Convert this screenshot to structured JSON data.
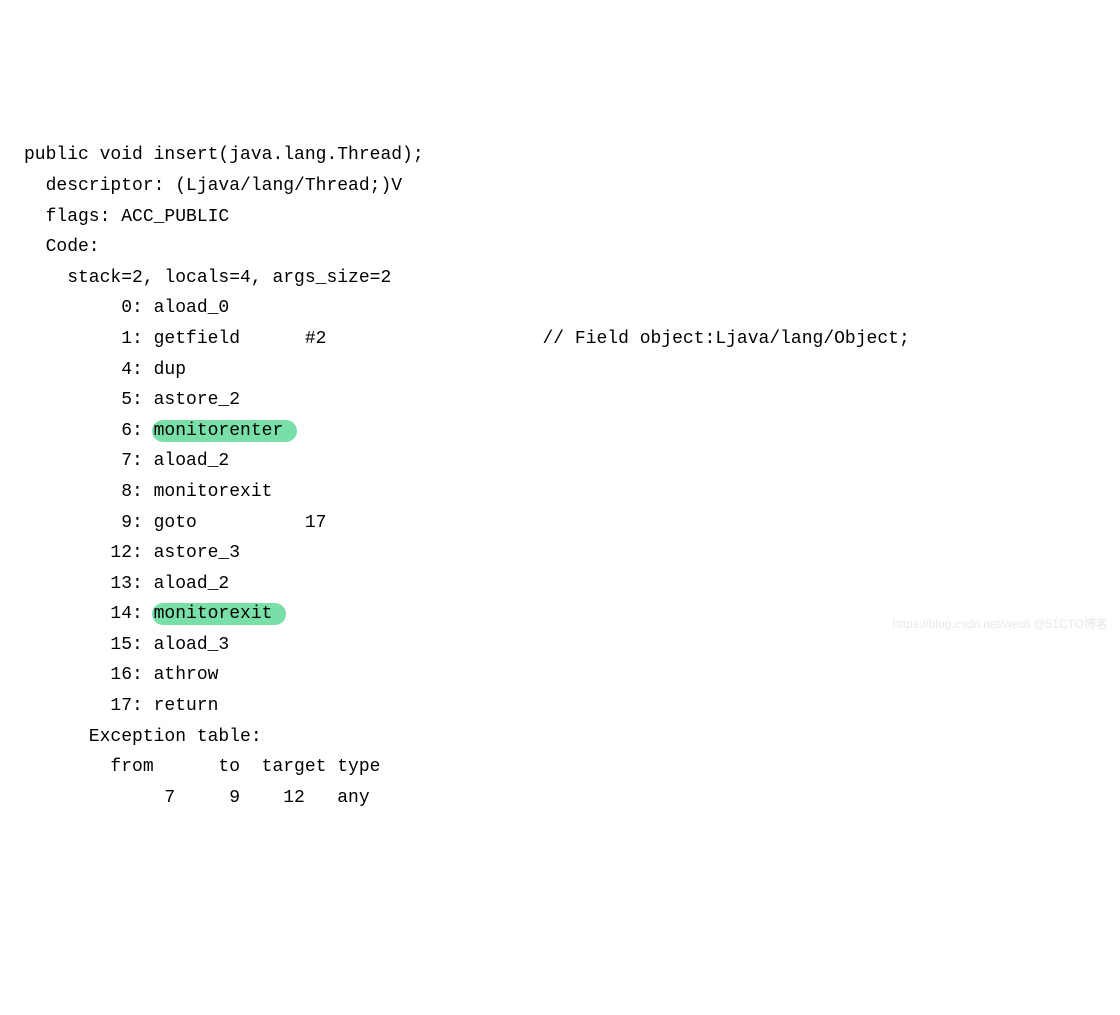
{
  "signature": "public void insert(java.lang.Thread);",
  "descriptor": "descriptor: (Ljava/lang/Thread;)V",
  "flags": "flags: ACC_PUBLIC",
  "code_label": "Code:",
  "stack_line": "stack=2, locals=4, args_size=2",
  "instructions": [
    {
      "pc": "0",
      "op": "aload_0",
      "arg": "",
      "comment": ""
    },
    {
      "pc": "1",
      "op": "getfield",
      "arg": "#2",
      "comment": "// Field object:Ljava/lang/Object;"
    },
    {
      "pc": "4",
      "op": "dup",
      "arg": "",
      "comment": ""
    },
    {
      "pc": "5",
      "op": "astore_2",
      "arg": "",
      "comment": ""
    },
    {
      "pc": "6",
      "op": "monitorenter",
      "arg": "",
      "comment": "",
      "highlight": true
    },
    {
      "pc": "7",
      "op": "aload_2",
      "arg": "",
      "comment": ""
    },
    {
      "pc": "8",
      "op": "monitorexit",
      "arg": "",
      "comment": ""
    },
    {
      "pc": "9",
      "op": "goto",
      "arg": "17",
      "comment": ""
    },
    {
      "pc": "12",
      "op": "astore_3",
      "arg": "",
      "comment": ""
    },
    {
      "pc": "13",
      "op": "aload_2",
      "arg": "",
      "comment": ""
    },
    {
      "pc": "14",
      "op": "monitorexit",
      "arg": "",
      "comment": "",
      "highlight": true
    },
    {
      "pc": "15",
      "op": "aload_3",
      "arg": "",
      "comment": ""
    },
    {
      "pc": "16",
      "op": "athrow",
      "arg": "",
      "comment": ""
    },
    {
      "pc": "17",
      "op": "return",
      "arg": "",
      "comment": ""
    }
  ],
  "exception_label": "Exception table:",
  "exception_header": {
    "from": "from",
    "to": "to",
    "target": "target",
    "type": "type"
  },
  "exception_row": {
    "from": "7",
    "to": "9",
    "target": "12",
    "type": "any"
  },
  "watermark": "https://blog.csdn.net/weixi @51CTO博客",
  "layout": {
    "indent1": "  ",
    "indent2": "    ",
    "indent3": "      ",
    "instr_indent": "        ",
    "pc_width": 2,
    "op_col_width": 14,
    "arg_col_width": 6,
    "comment_gap": "                ",
    "exc_col_width": 6
  }
}
